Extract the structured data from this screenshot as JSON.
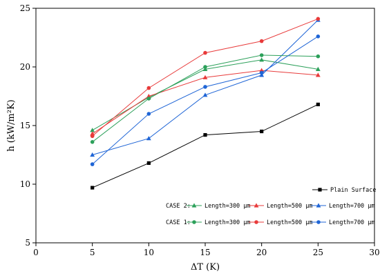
{
  "chart_data": {
    "type": "line",
    "title": "",
    "xlabel": "ΔT (K)",
    "ylabel": "h (kW/m²K)",
    "xlim": [
      0,
      30
    ],
    "ylim": [
      5,
      25
    ],
    "xticks": [
      0,
      5,
      10,
      15,
      20,
      25,
      30
    ],
    "yticks": [
      5,
      10,
      15,
      20,
      25
    ],
    "x": [
      5,
      10,
      15,
      20,
      25
    ],
    "grid": false,
    "legend_position": "bottom-right",
    "legend_rows": [
      {
        "group_label": "",
        "series": [
          "Plain Surface"
        ]
      },
      {
        "group_label": "CASE 2:",
        "series": [
          "CASE 2: Length=300 μm",
          "CASE 2: Length=500 μm",
          "CASE 2: Length=700 μm"
        ]
      },
      {
        "group_label": "CASE 1:",
        "series": [
          "CASE 1: Length=300 μm",
          "CASE 1: Length=500 μm",
          "CASE 1: Length=700 μm"
        ]
      }
    ],
    "series": [
      {
        "name": "Plain Surface",
        "legend_label": "Plain Surface",
        "color": "#000000",
        "marker": "square",
        "values": [
          9.7,
          11.8,
          14.2,
          14.5,
          16.8
        ]
      },
      {
        "name": "CASE 2: Length=300 μm",
        "legend_label": "Length=300 μm",
        "color": "#2ca05a",
        "marker": "triangle",
        "values": [
          14.6,
          17.4,
          19.8,
          20.6,
          19.8
        ]
      },
      {
        "name": "CASE 2: Length=500 μm",
        "legend_label": "Length=500 μm",
        "color": "#e83a3a",
        "marker": "triangle",
        "values": [
          14.3,
          17.5,
          19.1,
          19.7,
          19.3
        ]
      },
      {
        "name": "CASE 2: Length=700 μm",
        "legend_label": "Length=700 μm",
        "color": "#1f65d6",
        "marker": "triangle",
        "values": [
          12.5,
          13.9,
          17.6,
          19.3,
          24.0
        ]
      },
      {
        "name": "CASE 1: Length=300 μm",
        "legend_label": "Length=300 μm",
        "color": "#2ca05a",
        "marker": "circle",
        "values": [
          13.6,
          17.3,
          20.0,
          21.0,
          20.9
        ]
      },
      {
        "name": "CASE 1: Length=500 μm",
        "legend_label": "Length=500 μm",
        "color": "#e83a3a",
        "marker": "circle",
        "values": [
          14.1,
          18.2,
          21.2,
          22.2,
          24.1
        ]
      },
      {
        "name": "CASE 1: Length=700 μm",
        "legend_label": "Length=700 μm",
        "color": "#1f65d6",
        "marker": "circle",
        "values": [
          11.7,
          16.0,
          18.3,
          19.5,
          22.6
        ]
      }
    ]
  }
}
